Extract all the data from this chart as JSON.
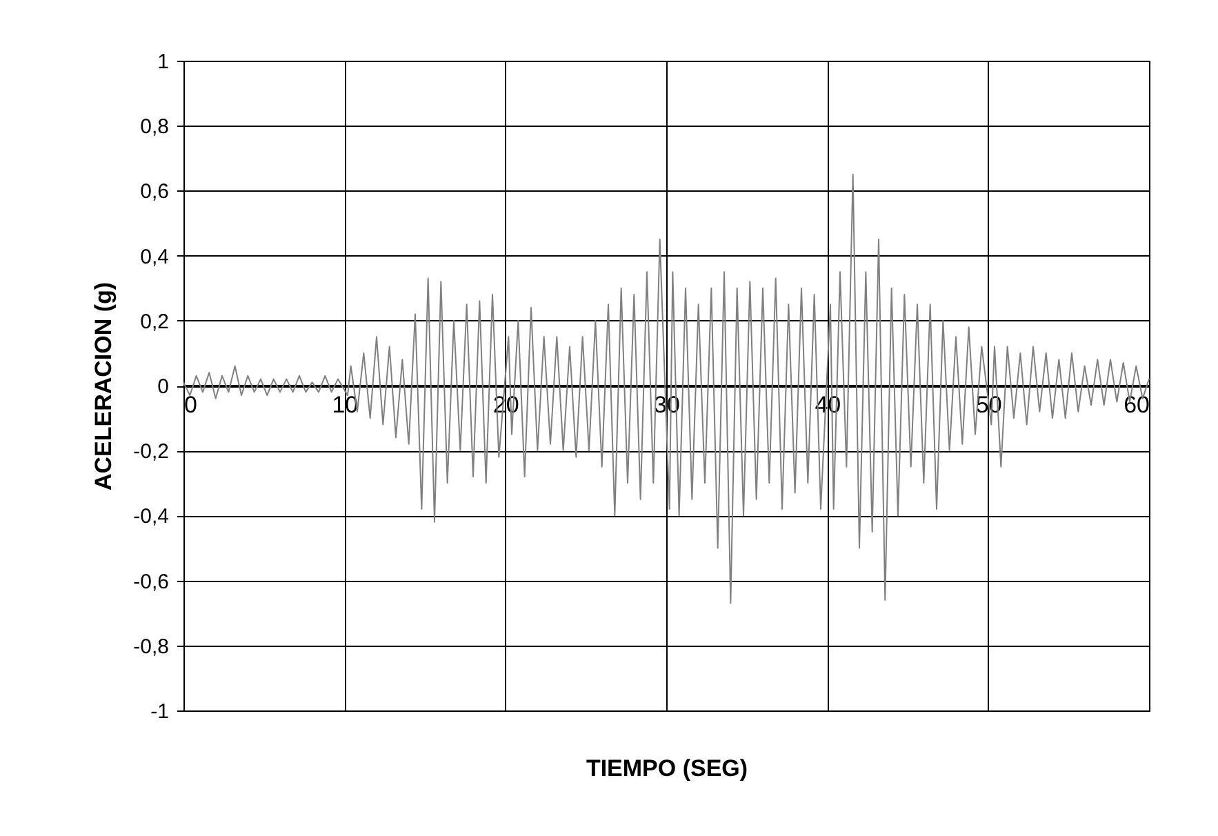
{
  "chart_data": {
    "type": "line",
    "xlabel": "TIEMPO (SEG)",
    "ylabel": "ACELERACION (g)",
    "x": [
      0,
      0.4,
      0.8,
      1.2,
      1.6,
      2,
      2.4,
      2.8,
      3.2,
      3.6,
      4,
      4.4,
      4.8,
      5.2,
      5.6,
      6,
      6.4,
      6.8,
      7.2,
      7.6,
      8,
      8.4,
      8.8,
      9.2,
      9.6,
      10.2,
      10.4,
      10.8,
      11.2,
      11.6,
      12,
      12.4,
      12.8,
      13.2,
      13.6,
      14,
      14.4,
      14.8,
      15.2,
      15.6,
      16,
      16.4,
      16.8,
      17.2,
      17.6,
      18,
      18.4,
      18.8,
      19.2,
      19.6,
      20.2,
      20.4,
      20.8,
      21.2,
      21.6,
      22,
      22.4,
      22.8,
      23.2,
      23.6,
      24,
      24.4,
      24.8,
      25.2,
      25.6,
      26,
      26.4,
      26.8,
      27.2,
      27.6,
      28,
      28.4,
      28.8,
      29.2,
      29.6,
      30.2,
      30.4,
      30.8,
      31.2,
      31.6,
      32,
      32.4,
      32.8,
      33.2,
      33.6,
      34,
      34.4,
      34.8,
      35.2,
      35.6,
      36,
      36.4,
      36.8,
      37.2,
      37.6,
      38,
      38.4,
      38.8,
      39.2,
      39.6,
      40.2,
      40.4,
      40.8,
      41.2,
      41.6,
      42,
      42.4,
      42.8,
      43.2,
      43.6,
      44,
      44.4,
      44.8,
      45.2,
      45.6,
      46,
      46.4,
      46.8,
      47.2,
      47.6,
      48,
      48.4,
      48.8,
      49.2,
      49.6,
      50.2,
      50.4,
      50.8,
      51.2,
      51.6,
      52,
      52.4,
      52.8,
      53.2,
      53.6,
      54,
      54.4,
      54.8,
      55.2,
      55.6,
      56,
      56.4,
      56.8,
      57.2,
      57.6,
      58,
      58.4,
      58.8,
      59.2,
      59.6,
      60
    ],
    "series": [
      {
        "color": "#808080",
        "values": [
          0.01,
          -0.03,
          0.03,
          -0.02,
          0.04,
          -0.04,
          0.03,
          -0.02,
          0.06,
          -0.03,
          0.03,
          -0.02,
          0.02,
          -0.03,
          0.02,
          -0.02,
          0.02,
          -0.02,
          0.03,
          -0.02,
          0.01,
          -0.02,
          0.03,
          -0.02,
          0.02,
          -0.03,
          0.06,
          -0.08,
          0.1,
          -0.1,
          0.15,
          -0.12,
          0.12,
          -0.16,
          0.08,
          -0.18,
          0.22,
          -0.38,
          0.33,
          -0.42,
          0.32,
          -0.3,
          0.2,
          -0.2,
          0.25,
          -0.28,
          0.26,
          -0.3,
          0.28,
          -0.22,
          0.15,
          -0.15,
          0.2,
          -0.28,
          0.24,
          -0.2,
          0.15,
          -0.18,
          0.15,
          -0.2,
          0.12,
          -0.22,
          0.15,
          -0.2,
          0.2,
          -0.25,
          0.25,
          -0.4,
          0.3,
          -0.3,
          0.28,
          -0.35,
          0.35,
          -0.3,
          0.45,
          -0.38,
          0.35,
          -0.4,
          0.3,
          -0.35,
          0.25,
          -0.3,
          0.3,
          -0.5,
          0.35,
          -0.67,
          0.3,
          -0.4,
          0.32,
          -0.35,
          0.3,
          -0.3,
          0.33,
          -0.38,
          0.25,
          -0.33,
          0.3,
          -0.3,
          0.28,
          -0.38,
          0.25,
          -0.38,
          0.35,
          -0.25,
          0.65,
          -0.5,
          0.35,
          -0.45,
          0.45,
          -0.66,
          0.3,
          -0.4,
          0.28,
          -0.25,
          0.25,
          -0.3,
          0.25,
          -0.38,
          0.2,
          -0.2,
          0.15,
          -0.18,
          0.18,
          -0.15,
          0.12,
          -0.12,
          0.12,
          -0.25,
          0.12,
          -0.1,
          0.1,
          -0.12,
          0.12,
          -0.08,
          0.1,
          -0.1,
          0.08,
          -0.1,
          0.1,
          -0.08,
          0.06,
          -0.06,
          0.08,
          -0.06,
          0.08,
          -0.05,
          0.07,
          -0.05,
          0.06,
          -0.04,
          0.02
        ]
      }
    ],
    "xlim": [
      0,
      60
    ],
    "xticks": [
      0,
      10,
      20,
      30,
      40,
      50,
      60
    ],
    "ylim": [
      -1,
      1
    ],
    "yticks": [
      {
        "value": -1,
        "label": "-1"
      },
      {
        "value": -0.8,
        "label": "-0,8"
      },
      {
        "value": -0.6,
        "label": "-0,6"
      },
      {
        "value": -0.4,
        "label": "-0,4"
      },
      {
        "value": -0.2,
        "label": "-0,2"
      },
      0,
      {
        "value": 0.2,
        "label": "0,2"
      },
      {
        "value": 0.4,
        "label": "0,4"
      },
      {
        "value": 0.6,
        "label": "0,6"
      },
      {
        "value": 0.8,
        "label": "0,8"
      },
      1
    ],
    "grid": true,
    "marker": "none",
    "line_style": "solid"
  }
}
